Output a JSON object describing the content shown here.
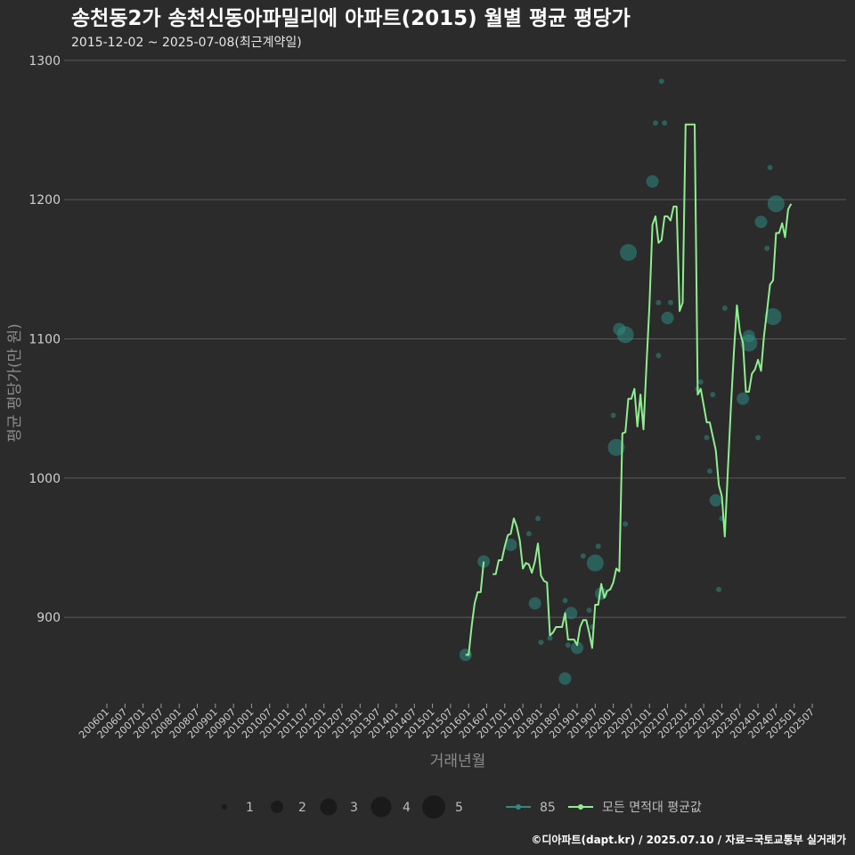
{
  "chart_data": {
    "type": "line",
    "title": "송천동2가 송천신동아파밀리에 아파트(2015) 월별 평균 평당가",
    "subtitle": "2015-12-02 ~ 2025-07-08(최근계약일)",
    "xlabel": "거래년월",
    "ylabel": "평균 평당가(만 원)",
    "caption": "©디아파트(dapt.kr) / 2025.07.10 / 자료=국토교통부 실거래가",
    "ylim": [
      838,
      1305
    ],
    "y_ticks": [
      900,
      1000,
      1100,
      1200,
      1300
    ],
    "y_tick_labels": [
      "900",
      "1000",
      "1100",
      "1200",
      "1300"
    ],
    "x_tick_labels": [
      "200601",
      "200607",
      "200701",
      "200707",
      "200801",
      "200807",
      "200901",
      "200907",
      "201001",
      "201007",
      "201101",
      "201107",
      "201201",
      "201207",
      "201301",
      "201307",
      "201401",
      "201407",
      "201501",
      "201507",
      "201601",
      "201607",
      "201701",
      "201707",
      "201801",
      "201807",
      "201901",
      "201907",
      "202001",
      "202007",
      "202101",
      "202107",
      "202201",
      "202207",
      "202301",
      "202307",
      "202401",
      "202407",
      "202501",
      "202507"
    ],
    "colors": {
      "line": "#90ee90",
      "bubble": "#2e8b80",
      "grid": "#5a5a5a",
      "background": "#2b2b2b"
    },
    "series": [
      {
        "name": "모든 면적대 평균값",
        "points": [
          [
            "201512",
            873
          ],
          [
            "201601",
            873
          ],
          [
            "201602",
            893
          ],
          [
            "201603",
            910
          ],
          [
            "201604",
            918
          ],
          [
            "201605",
            918
          ],
          [
            "201606",
            940
          ],
          [
            "201609",
            931
          ],
          [
            "201610",
            931
          ],
          [
            "201611",
            941
          ],
          [
            "201612",
            941
          ],
          [
            "201701",
            951
          ],
          [
            "201702",
            959
          ],
          [
            "201703",
            960
          ],
          [
            "201704",
            971
          ],
          [
            "201705",
            965
          ],
          [
            "201706",
            955
          ],
          [
            "201707",
            935
          ],
          [
            "201708",
            939
          ],
          [
            "201709",
            938
          ],
          [
            "201710",
            932
          ],
          [
            "201711",
            940
          ],
          [
            "201712",
            953
          ],
          [
            "201801",
            930
          ],
          [
            "201802",
            926
          ],
          [
            "201803",
            925
          ],
          [
            "201804",
            887
          ],
          [
            "201805",
            889
          ],
          [
            "201806",
            893
          ],
          [
            "201807",
            893
          ],
          [
            "201808",
            893
          ],
          [
            "201809",
            903
          ],
          [
            "201810",
            884
          ],
          [
            "201811",
            884
          ],
          [
            "201812",
            884
          ],
          [
            "201901",
            880
          ],
          [
            "201902",
            893
          ],
          [
            "201903",
            898
          ],
          [
            "201904",
            898
          ],
          [
            "201905",
            889
          ],
          [
            "201906",
            878
          ],
          [
            "201907",
            909
          ],
          [
            "201908",
            909
          ],
          [
            "201909",
            924
          ],
          [
            "201910",
            914
          ],
          [
            "201911",
            919
          ],
          [
            "201912",
            920
          ],
          [
            "202001",
            925
          ],
          [
            "202002",
            935
          ],
          [
            "202003",
            933
          ],
          [
            "202004",
            1032
          ],
          [
            "202005",
            1033
          ],
          [
            "202006",
            1057
          ],
          [
            "202007",
            1057
          ],
          [
            "202008",
            1064
          ],
          [
            "202009",
            1037
          ],
          [
            "202010",
            1060
          ],
          [
            "202011",
            1035
          ],
          [
            "202012",
            1080
          ],
          [
            "202101",
            1124
          ],
          [
            "202102",
            1182
          ],
          [
            "202103",
            1188
          ],
          [
            "202104",
            1169
          ],
          [
            "202105",
            1171
          ],
          [
            "202106",
            1188
          ],
          [
            "202107",
            1188
          ],
          [
            "202108",
            1185
          ],
          [
            "202109",
            1195
          ],
          [
            "202110",
            1195
          ],
          [
            "202111",
            1120
          ],
          [
            "202112",
            1126
          ],
          [
            "202201",
            1254
          ],
          [
            "202202",
            1254
          ],
          [
            "202203",
            1254
          ],
          [
            "202204",
            1254
          ],
          [
            "202205",
            1060
          ],
          [
            "202206",
            1064
          ],
          [
            "202207",
            1052
          ],
          [
            "202208",
            1040
          ],
          [
            "202209",
            1040
          ],
          [
            "202210",
            1030
          ],
          [
            "202211",
            1020
          ],
          [
            "202212",
            995
          ],
          [
            "202301",
            987
          ],
          [
            "202302",
            958
          ],
          [
            "202303",
            1005
          ],
          [
            "202304",
            1050
          ],
          [
            "202305",
            1090
          ],
          [
            "202306",
            1124
          ],
          [
            "202307",
            1105
          ],
          [
            "202308",
            1097
          ],
          [
            "202309",
            1062
          ],
          [
            "202310",
            1062
          ],
          [
            "202311",
            1075
          ],
          [
            "202312",
            1078
          ],
          [
            "202401",
            1085
          ],
          [
            "202402",
            1077
          ],
          [
            "202403",
            1102
          ],
          [
            "202404",
            1120
          ],
          [
            "202405",
            1139
          ],
          [
            "202406",
            1142
          ],
          [
            "202407",
            1176
          ],
          [
            "202408",
            1176
          ],
          [
            "202409",
            1183
          ],
          [
            "202410",
            1173
          ],
          [
            "202411",
            1193
          ],
          [
            "202412",
            1197
          ]
        ]
      },
      {
        "name": "85",
        "bubbles": [
          [
            "201512",
            873,
            2
          ],
          [
            "201601",
            873,
            1
          ],
          [
            "201606",
            940,
            2
          ],
          [
            "201703",
            952,
            2
          ],
          [
            "201711",
            910,
            2
          ],
          [
            "201712",
            971,
            1
          ],
          [
            "201709",
            960,
            1
          ],
          [
            "201801",
            882,
            1
          ],
          [
            "201804",
            885,
            1
          ],
          [
            "201809",
            856,
            2
          ],
          [
            "201809",
            912,
            1
          ],
          [
            "201810",
            880,
            1
          ],
          [
            "201811",
            903,
            2
          ],
          [
            "201901",
            878,
            2
          ],
          [
            "201903",
            944,
            1
          ],
          [
            "201905",
            905,
            1
          ],
          [
            "201906",
            893,
            1
          ],
          [
            "201907",
            939,
            3
          ],
          [
            "201908",
            951,
            1
          ],
          [
            "201909",
            917,
            2
          ],
          [
            "202001",
            1045,
            1
          ],
          [
            "202002",
            1022,
            3
          ],
          [
            "202003",
            1107,
            2
          ],
          [
            "202005",
            967,
            1
          ],
          [
            "202005",
            1103,
            3
          ],
          [
            "202006",
            1162,
            3
          ],
          [
            "202102",
            1213,
            2
          ],
          [
            "202103",
            1255,
            1
          ],
          [
            "202104",
            1126,
            1
          ],
          [
            "202104",
            1088,
            1
          ],
          [
            "202105",
            1285,
            1
          ],
          [
            "202107",
            1115,
            2
          ],
          [
            "202106",
            1255,
            1
          ],
          [
            "202108",
            1126,
            1
          ],
          [
            "202205",
            1064,
            1
          ],
          [
            "202206",
            1069,
            1
          ],
          [
            "202208",
            1029,
            1
          ],
          [
            "202209",
            1005,
            1
          ],
          [
            "202210",
            1060,
            1
          ],
          [
            "202211",
            984,
            2
          ],
          [
            "202212",
            920,
            1
          ],
          [
            "202301",
            971,
            1
          ],
          [
            "202302",
            1122,
            1
          ],
          [
            "202308",
            1057,
            2
          ],
          [
            "202310",
            1102,
            2
          ],
          [
            "202310",
            1097,
            3
          ],
          [
            "202401",
            1029,
            1
          ],
          [
            "202402",
            1184,
            2
          ],
          [
            "202404",
            1165,
            1
          ],
          [
            "202405",
            1223,
            1
          ],
          [
            "202406",
            1116,
            3
          ],
          [
            "202407",
            1197,
            3
          ]
        ]
      }
    ],
    "legend_size": {
      "title": "",
      "sizes": [
        1,
        2,
        3,
        4,
        5
      ],
      "labels": [
        "1",
        "2",
        "3",
        "4",
        "5"
      ]
    },
    "legend_series": [
      {
        "name": "85",
        "label": "85"
      },
      {
        "name": "모든 면적대 평균값",
        "label": "모든 면적대 평균값"
      }
    ]
  }
}
